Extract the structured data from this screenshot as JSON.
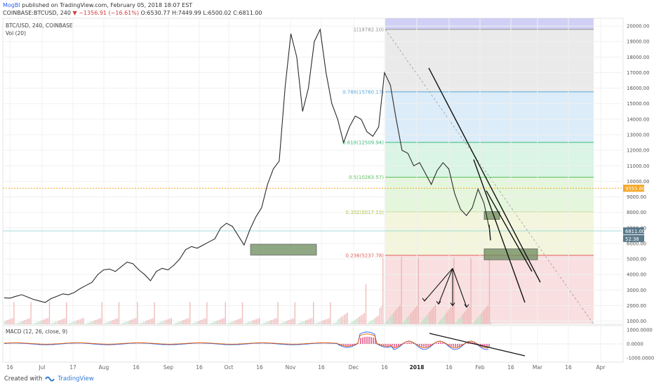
{
  "header": {
    "author": "MogBl",
    "published": "published on TradingView.com, February 05, 2018 18:07 EST",
    "symbol": "COINBASE:BTCUSD, 240",
    "change": "−1356.91 (−16.61%)",
    "ohlc": "O:6530.77  H:7449.99  L:6500.02  C:6811.00"
  },
  "footer": {
    "created": "Created with",
    "brand": "TradingView"
  },
  "chart_data": [
    {
      "type": "line",
      "title": "BTC/USD, 240, COINBASE",
      "indicator": "Vol (20)",
      "ylim": [
        800,
        20500
      ],
      "y_ticks": [
        "1000.00",
        "2000.00",
        "3000.00",
        "4000.00",
        "5000.00",
        "6000.00",
        "7000.00",
        "8000.00",
        "9000.00",
        "10000.00",
        "11000.00",
        "12000.00",
        "13000.00",
        "14000.00",
        "15000.00",
        "16000.00",
        "17000.00",
        "18000.00",
        "19000.00",
        "20000.00"
      ],
      "x_ticks": [
        "16",
        "Jul",
        "17",
        "Aug",
        "16",
        "Sep",
        "16",
        "Oct",
        "16",
        "Nov",
        "16",
        "Dec",
        "16",
        "2018",
        "16",
        "Feb",
        "16",
        "Mar",
        "16",
        "Apr"
      ],
      "price_tags": [
        {
          "label": "9555.60",
          "value": 9555.6,
          "color": "#f5a623"
        },
        {
          "label": "6811.00",
          "value": 6811,
          "color": "#5b7a8a"
        },
        {
          "label": "52:38",
          "value": 6320,
          "color": "#5b7a8a"
        }
      ],
      "fib_levels": [
        {
          "label": "1(19782.10)",
          "value": 19782.1,
          "color": "#8f8f8f"
        },
        {
          "label": "0.786(15760.17)",
          "value": 15760.17,
          "color": "#5aa8d8"
        },
        {
          "label": "0.618(12509.94)",
          "value": 12509.94,
          "color": "#3cba7c"
        },
        {
          "label": "0.5(10263.57)",
          "value": 10263.57,
          "color": "#5cc15c"
        },
        {
          "label": "0.382(8017.19)",
          "value": 8017.19,
          "color": "#a6b82e"
        },
        {
          "label": "0.236(5237.78)",
          "value": 5237.78,
          "color": "#e06060"
        }
      ],
      "series": [
        {
          "values": [
            2500,
            2480,
            2600,
            2700,
            2550,
            2400,
            2300,
            2200,
            2450,
            2600,
            2750,
            2700,
            2850,
            3100,
            3300,
            3500,
            4000,
            4300,
            4350,
            4200,
            4500,
            4800,
            4700,
            4300,
            4000,
            3600,
            4200,
            4400,
            4300,
            4600,
            5000,
            5600,
            5800,
            5700,
            5900,
            6100,
            6300,
            7000,
            7300,
            7100,
            6500,
            5900,
            6900,
            7700,
            8300,
            9800,
            10800,
            11300,
            16000,
            19500,
            18000,
            14500,
            16000,
            19000,
            19782,
            17000,
            15000,
            14000,
            12500,
            13500,
            14200,
            14000,
            13200,
            12900,
            13500,
            17000,
            16200,
            14000,
            12000,
            11800,
            11000,
            11200,
            10500,
            9800,
            10700,
            11200,
            10800,
            9200,
            8200,
            7800,
            8300,
            9500,
            8600,
            6811
          ]
        }
      ]
    },
    {
      "type": "line",
      "title": "MACD (12, 26, close, 9)",
      "ylim": [
        -1300,
        1300
      ],
      "y_ticks": [
        "1000.0000",
        "0.0000",
        "-1000.0000"
      ]
    }
  ]
}
